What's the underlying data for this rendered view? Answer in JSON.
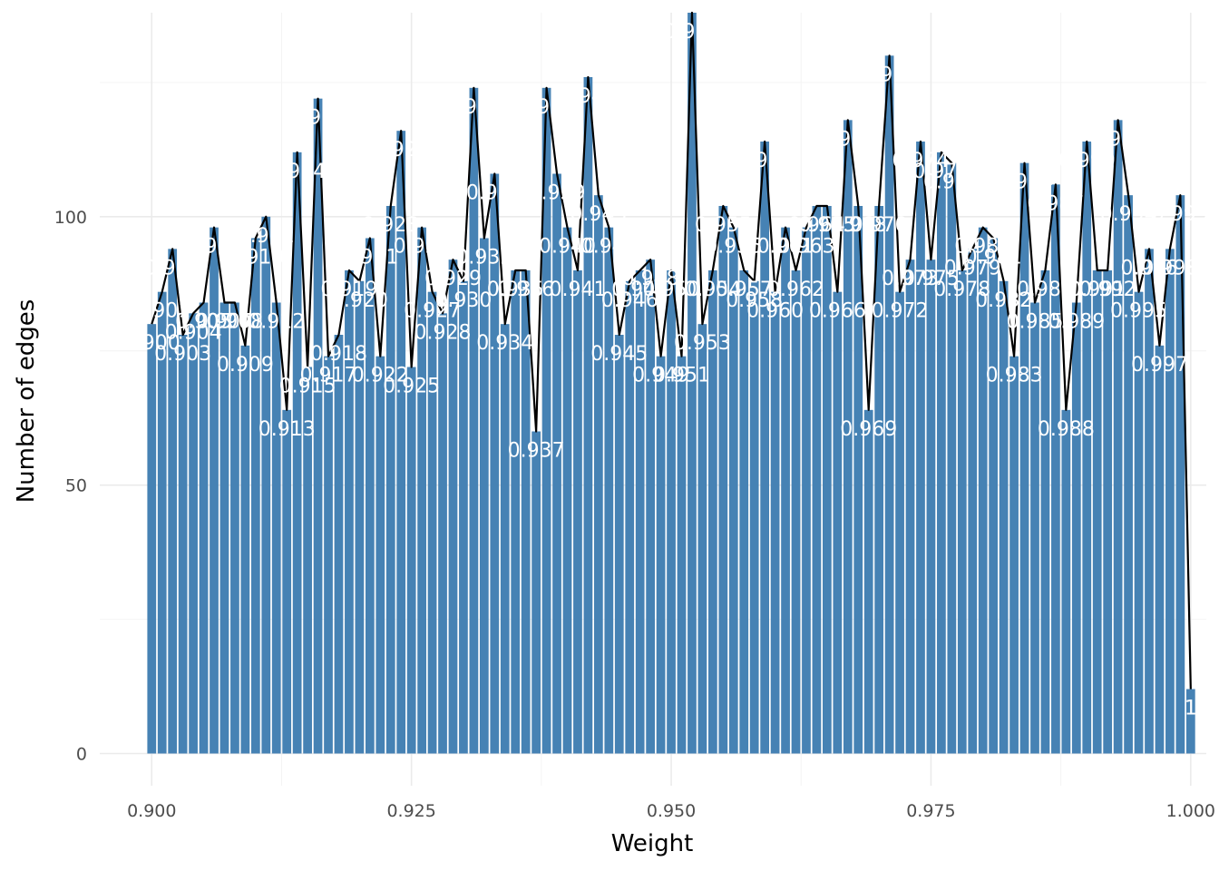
{
  "chart_data": {
    "type": "bar",
    "xlabel": "Weight",
    "ylabel": "Number of edges",
    "xlim": [
      0.895,
      1.0015
    ],
    "ylim": [
      -6,
      138
    ],
    "x_ticks": [
      0.9,
      0.925,
      0.95,
      0.975,
      1.0
    ],
    "x_tick_labels": [
      "0.900",
      "0.925",
      "0.950",
      "0.975",
      "1.000"
    ],
    "y_ticks": [
      0,
      50,
      100
    ],
    "y_tick_labels": [
      "0",
      "50",
      "100"
    ],
    "bar_width": 0.00085,
    "grid": true,
    "series": [
      {
        "type": "bar",
        "x": [
          0.9,
          0.901,
          0.902,
          0.903,
          0.904,
          0.905,
          0.906,
          0.907,
          0.908,
          0.909,
          0.91,
          0.911,
          0.912,
          0.913,
          0.914,
          0.915,
          0.916,
          0.917,
          0.918,
          0.919,
          0.92,
          0.921,
          0.922,
          0.923,
          0.924,
          0.925,
          0.926,
          0.927,
          0.928,
          0.929,
          0.93,
          0.931,
          0.932,
          0.933,
          0.934,
          0.935,
          0.936,
          0.937,
          0.938,
          0.939,
          0.94,
          0.941,
          0.942,
          0.943,
          0.944,
          0.945,
          0.946,
          0.947,
          0.948,
          0.949,
          0.95,
          0.951,
          0.952,
          0.953,
          0.954,
          0.955,
          0.956,
          0.957,
          0.958,
          0.959,
          0.96,
          0.961,
          0.962,
          0.963,
          0.964,
          0.965,
          0.966,
          0.967,
          0.968,
          0.969,
          0.97,
          0.971,
          0.972,
          0.973,
          0.974,
          0.975,
          0.976,
          0.977,
          0.978,
          0.979,
          0.98,
          0.981,
          0.982,
          0.983,
          0.984,
          0.985,
          0.986,
          0.987,
          0.988,
          0.989,
          0.99,
          0.991,
          0.992,
          0.993,
          0.994,
          0.995,
          0.996,
          0.997,
          0.998,
          0.999,
          1.0
        ],
        "values": [
          80,
          86,
          94,
          78,
          82,
          84,
          98,
          84,
          84,
          76,
          96,
          100,
          84,
          64,
          112,
          72,
          122,
          74,
          78,
          90,
          88,
          96,
          74,
          102,
          116,
          72,
          98,
          86,
          82,
          92,
          88,
          124,
          96,
          108,
          80,
          90,
          90,
          60,
          124,
          108,
          98,
          90,
          126,
          104,
          98,
          78,
          88,
          90,
          92,
          74,
          90,
          74,
          138,
          80,
          90,
          102,
          98,
          90,
          88,
          114,
          86,
          98,
          90,
          98,
          102,
          102,
          86,
          118,
          102,
          64,
          102,
          130,
          86,
          92,
          114,
          92,
          112,
          110,
          90,
          94,
          98,
          96,
          88,
          74,
          110,
          84,
          90,
          106,
          64,
          84,
          114,
          90,
          90,
          118,
          104,
          86,
          94,
          76,
          94,
          104,
          12
        ],
        "labels": [
          "0.900",
          "0.901",
          "0.902",
          "0.903",
          "0.904",
          "0.905",
          "0.906",
          "0.907",
          "0.908",
          "0.909",
          "0.910",
          "0.911",
          "0.912",
          "0.913",
          "0.914",
          "0.915",
          "0.916",
          "0.917",
          "0.918",
          "0.919",
          "0.920",
          "0.921",
          "0.922",
          "0.923",
          "0.924",
          "0.925",
          "0.926",
          "0.927",
          "0.928",
          "0.929",
          "0.930",
          "0.931",
          "0.932",
          "0.933",
          "0.934",
          "0.935",
          "0.936",
          "0.937",
          "0.938",
          "0.939",
          "0.940",
          "0.941",
          "0.942",
          "0.943",
          "0.944",
          "0.945",
          "0.946",
          "0.947",
          "0.948",
          "0.949",
          "0.950",
          "0.951",
          "0.952",
          "0.953",
          "0.954",
          "0.955",
          "0.956",
          "0.957",
          "0.958",
          "0.959",
          "0.960",
          "0.961",
          "0.962",
          "0.963",
          "0.964",
          "0.965",
          "0.966",
          "0.967",
          "0.968",
          "0.969",
          "0.970",
          "0.971",
          "0.972",
          "0.973",
          "0.974",
          "0.975",
          "0.976",
          "0.977",
          "0.978",
          "0.979",
          "0.980",
          "0.981",
          "0.982",
          "0.983",
          "0.984",
          "0.985",
          "0.986",
          "0.987",
          "0.988",
          "0.989",
          "0.990",
          "0.991",
          "0.992",
          "0.993",
          "0.994",
          "0.995",
          "0.996",
          "0.997",
          "0.998",
          "0.999",
          "1"
        ],
        "color": "#4682b4"
      },
      {
        "type": "line",
        "color": "#000000"
      }
    ]
  }
}
